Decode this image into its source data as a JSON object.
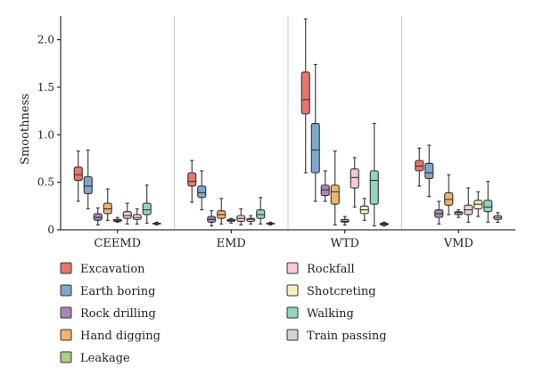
{
  "chart_data": {
    "type": "box",
    "ylabel": "Smoothness",
    "xlabel": "",
    "ylim": [
      0,
      2.25
    ],
    "yticks": [
      "0",
      "0.5",
      "1.0",
      "1.5",
      "2.0"
    ],
    "yticks_values": [
      0,
      0.5,
      1.0,
      1.5,
      2.0
    ],
    "grid": false,
    "legend_position": "bottom",
    "groups": [
      "CEEMD",
      "EMD",
      "WTD",
      "VMD"
    ],
    "series": [
      {
        "name": "Excavation",
        "color": "#e8776b",
        "boxes": [
          {
            "min": 0.3,
            "q1": 0.52,
            "median": 0.58,
            "q3": 0.66,
            "max": 0.83
          },
          {
            "min": 0.29,
            "q1": 0.46,
            "median": 0.51,
            "q3": 0.6,
            "max": 0.73
          },
          {
            "min": 0.6,
            "q1": 1.22,
            "median": 1.37,
            "q3": 1.66,
            "max": 2.22
          },
          {
            "min": 0.46,
            "q1": 0.62,
            "median": 0.67,
            "q3": 0.73,
            "max": 0.86
          }
        ]
      },
      {
        "name": "Earth boring",
        "color": "#7ea7cd",
        "boxes": [
          {
            "min": 0.22,
            "q1": 0.38,
            "median": 0.46,
            "q3": 0.56,
            "max": 0.84
          },
          {
            "min": 0.21,
            "q1": 0.34,
            "median": 0.39,
            "q3": 0.46,
            "max": 0.62
          },
          {
            "min": 0.3,
            "q1": 0.6,
            "median": 0.84,
            "q3": 1.12,
            "max": 1.74
          },
          {
            "min": 0.35,
            "q1": 0.54,
            "median": 0.6,
            "q3": 0.7,
            "max": 0.89
          }
        ]
      },
      {
        "name": "Rock drilling",
        "color": "#a887b7",
        "boxes": [
          {
            "min": 0.05,
            "q1": 0.1,
            "median": 0.13,
            "q3": 0.17,
            "max": 0.23
          },
          {
            "min": 0.04,
            "q1": 0.08,
            "median": 0.11,
            "q3": 0.14,
            "max": 0.2
          },
          {
            "min": 0.3,
            "q1": 0.36,
            "median": 0.42,
            "q3": 0.47,
            "max": 0.62
          },
          {
            "min": 0.06,
            "q1": 0.13,
            "median": 0.17,
            "q3": 0.21,
            "max": 0.3
          }
        ]
      },
      {
        "name": "Hand digging",
        "color": "#f2b36f",
        "boxes": [
          {
            "min": 0.1,
            "q1": 0.17,
            "median": 0.22,
            "q3": 0.28,
            "max": 0.43
          },
          {
            "min": 0.06,
            "q1": 0.12,
            "median": 0.16,
            "q3": 0.2,
            "max": 0.33
          },
          {
            "min": 0.05,
            "q1": 0.27,
            "median": 0.4,
            "q3": 0.47,
            "max": 0.83
          },
          {
            "min": 0.16,
            "q1": 0.26,
            "median": 0.32,
            "q3": 0.39,
            "max": 0.58
          }
        ]
      },
      {
        "name": "Leakage",
        "color": "#a9cf80",
        "boxes": [
          {
            "min": 0.08,
            "q1": 0.09,
            "median": 0.1,
            "q3": 0.11,
            "max": 0.13
          },
          {
            "min": 0.07,
            "q1": 0.09,
            "median": 0.1,
            "q3": 0.11,
            "max": 0.12
          },
          {
            "min": 0.05,
            "q1": 0.08,
            "median": 0.09,
            "q3": 0.11,
            "max": 0.14
          },
          {
            "min": 0.13,
            "q1": 0.16,
            "median": 0.18,
            "q3": 0.19,
            "max": 0.21
          }
        ]
      },
      {
        "name": "Rockfall",
        "color": "#f7cbd4",
        "boxes": [
          {
            "min": 0.06,
            "q1": 0.12,
            "median": 0.15,
            "q3": 0.19,
            "max": 0.28
          },
          {
            "min": 0.05,
            "q1": 0.09,
            "median": 0.12,
            "q3": 0.15,
            "max": 0.22
          },
          {
            "min": 0.24,
            "q1": 0.44,
            "median": 0.55,
            "q3": 0.64,
            "max": 0.76
          },
          {
            "min": 0.08,
            "q1": 0.16,
            "median": 0.21,
            "q3": 0.26,
            "max": 0.44
          }
        ]
      },
      {
        "name": "Shotcreting",
        "color": "#f6f1c3",
        "boxes": [
          {
            "min": 0.06,
            "q1": 0.11,
            "median": 0.13,
            "q3": 0.16,
            "max": 0.22
          },
          {
            "min": 0.06,
            "q1": 0.09,
            "median": 0.11,
            "q3": 0.12,
            "max": 0.15
          },
          {
            "min": 0.1,
            "q1": 0.17,
            "median": 0.21,
            "q3": 0.25,
            "max": 0.33
          },
          {
            "min": 0.14,
            "q1": 0.22,
            "median": 0.27,
            "q3": 0.31,
            "max": 0.4
          }
        ]
      },
      {
        "name": "Walking",
        "color": "#92d4c2",
        "boxes": [
          {
            "min": 0.07,
            "q1": 0.16,
            "median": 0.21,
            "q3": 0.28,
            "max": 0.47
          },
          {
            "min": 0.06,
            "q1": 0.12,
            "median": 0.16,
            "q3": 0.21,
            "max": 0.34
          },
          {
            "min": 0.04,
            "q1": 0.27,
            "median": 0.52,
            "q3": 0.62,
            "max": 1.12
          },
          {
            "min": 0.08,
            "q1": 0.19,
            "median": 0.24,
            "q3": 0.31,
            "max": 0.51
          }
        ]
      },
      {
        "name": "Train passing",
        "color": "#d2d2d2",
        "boxes": [
          {
            "min": 0.05,
            "q1": 0.06,
            "median": 0.065,
            "q3": 0.07,
            "max": 0.08
          },
          {
            "min": 0.05,
            "q1": 0.06,
            "median": 0.065,
            "q3": 0.07,
            "max": 0.08
          },
          {
            "min": 0.04,
            "q1": 0.05,
            "median": 0.06,
            "q3": 0.07,
            "max": 0.08
          },
          {
            "min": 0.08,
            "q1": 0.11,
            "median": 0.13,
            "q3": 0.15,
            "max": 0.18
          }
        ]
      }
    ]
  }
}
